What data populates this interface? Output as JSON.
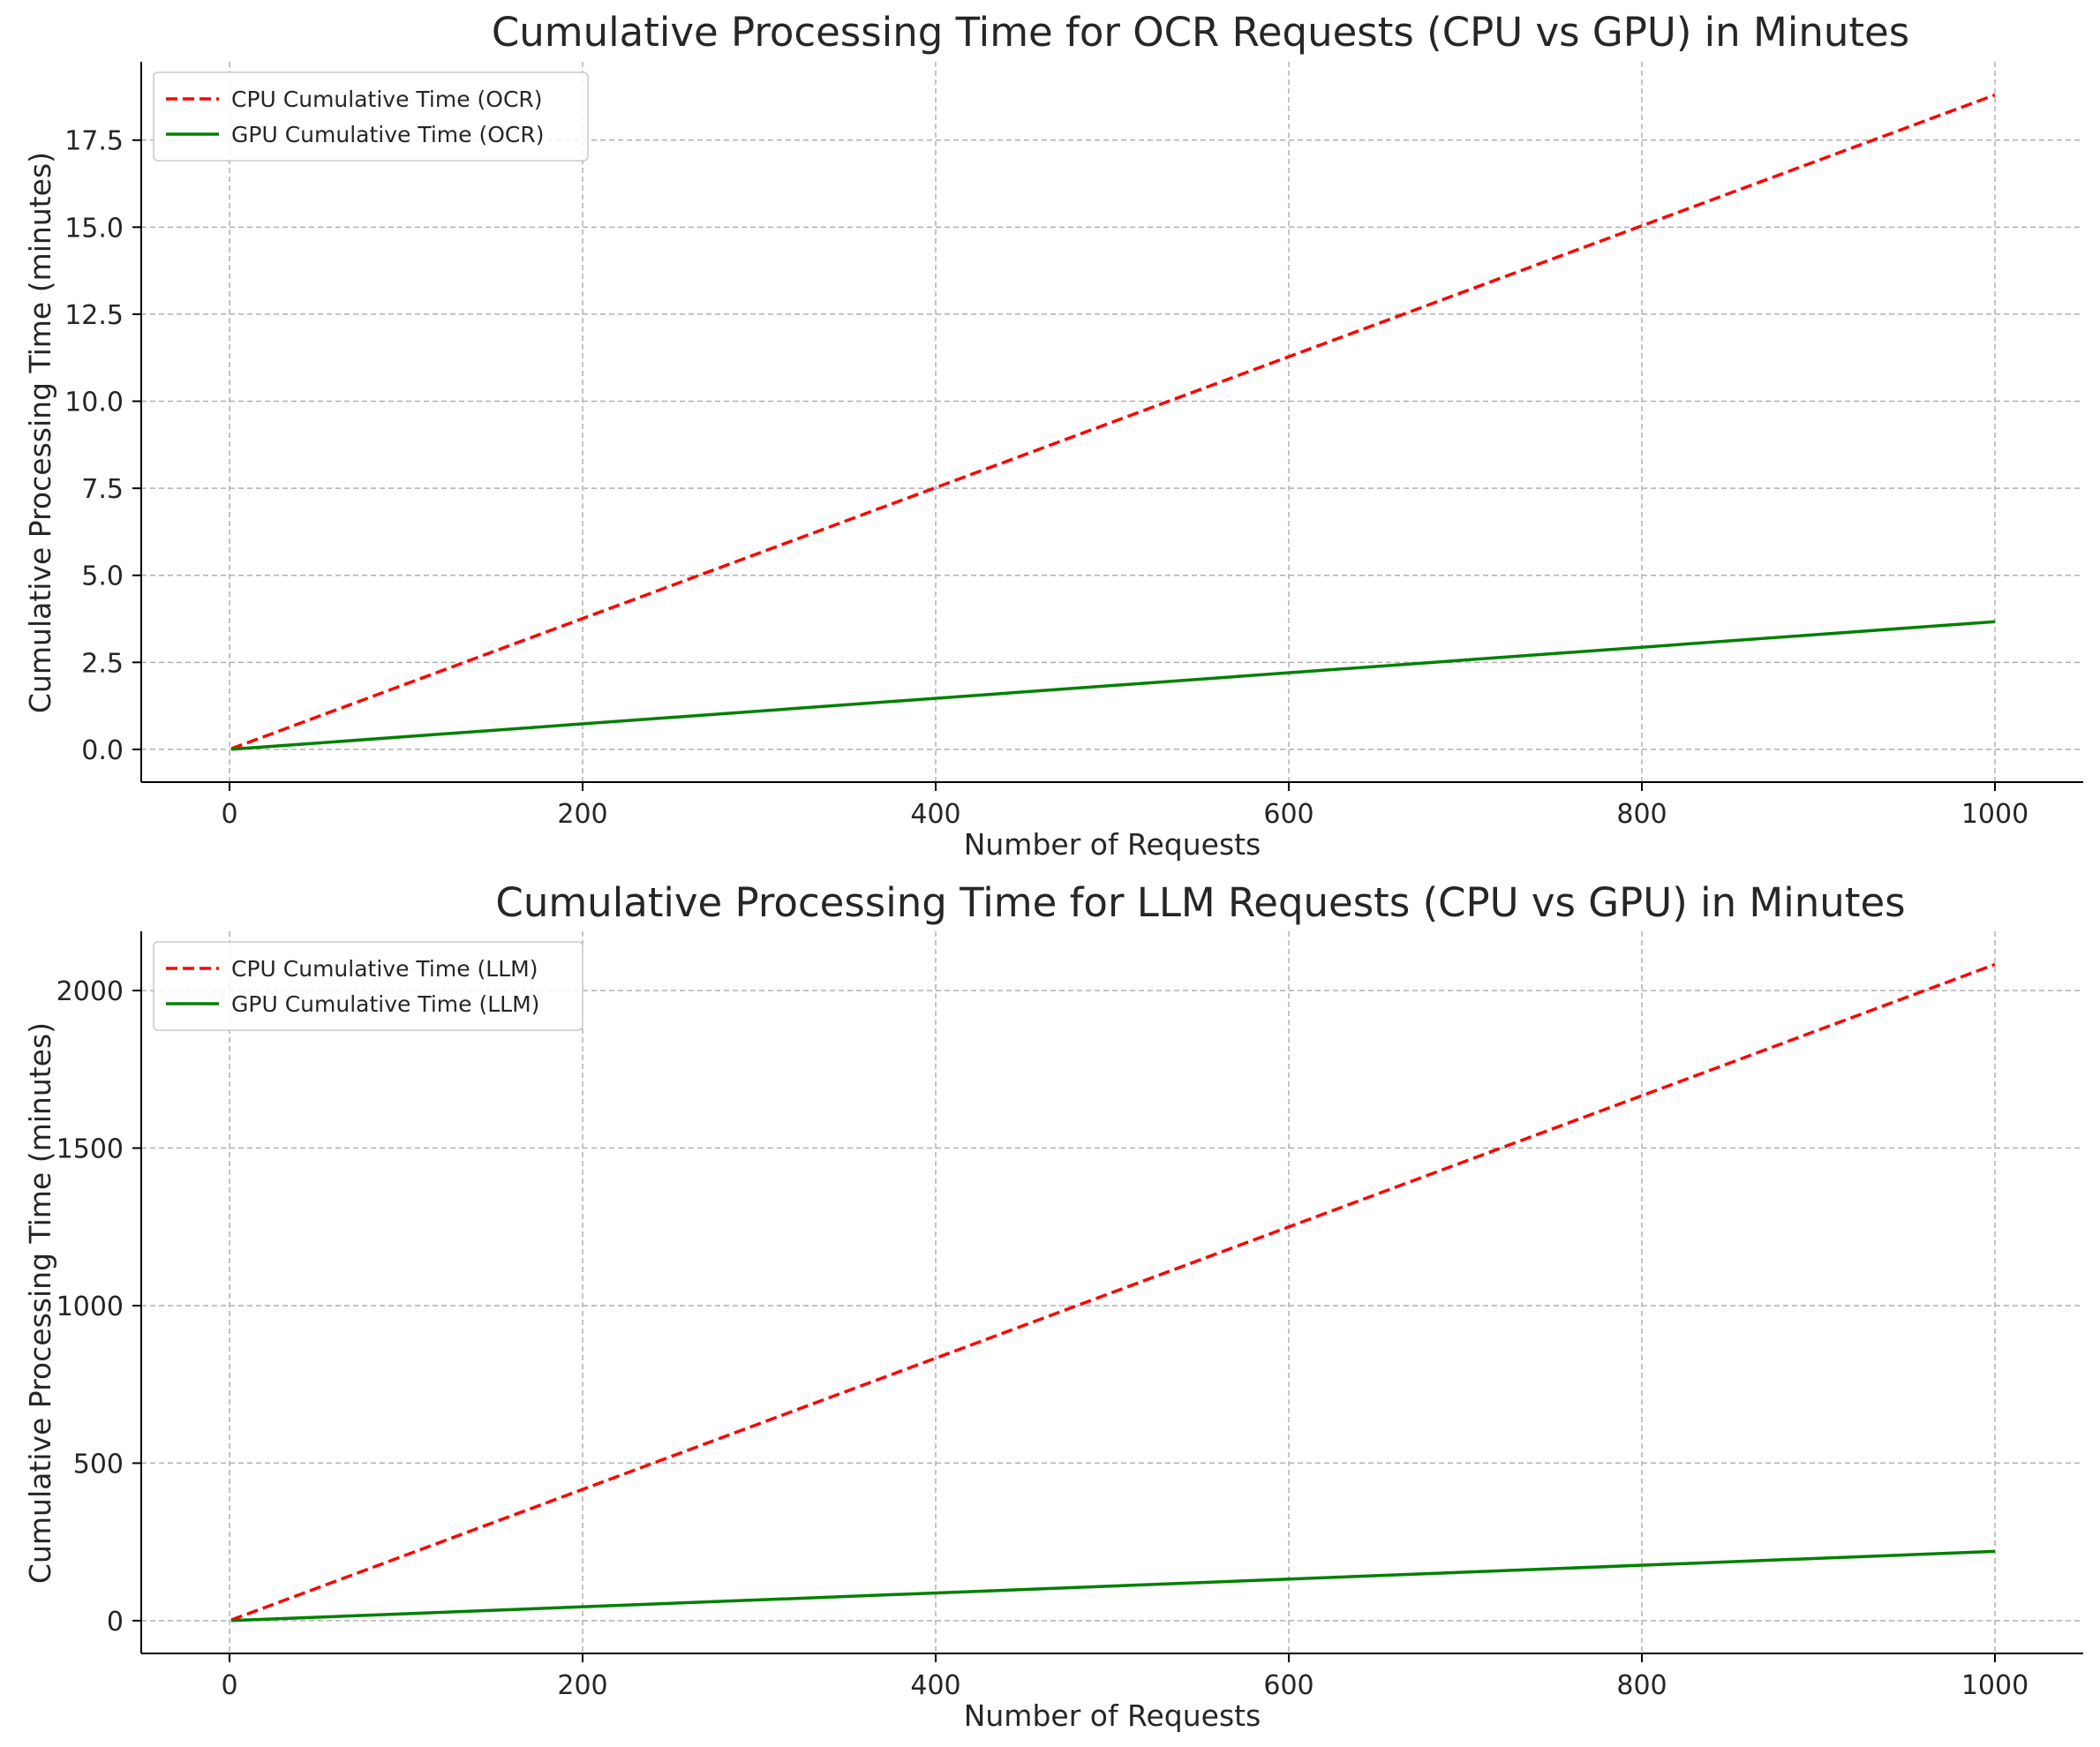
{
  "chart_data": [
    {
      "type": "line",
      "title": "Cumulative Processing Time for OCR Requests (CPU vs GPU) in Minutes",
      "xlabel": "Number of Requests",
      "ylabel": "Cumulative Processing Time (minutes)",
      "xlim": [
        -50,
        1050
      ],
      "ylim": [
        -0.94,
        19.75
      ],
      "xticks": [
        0,
        200,
        400,
        600,
        800,
        1000
      ],
      "xtick_labels": [
        "0",
        "200",
        "400",
        "600",
        "800",
        "1000"
      ],
      "yticks": [
        0,
        2.5,
        5,
        7.5,
        10,
        12.5,
        15,
        17.5
      ],
      "ytick_labels": [
        "0.0",
        "2.5",
        "5.0",
        "7.5",
        "10.0",
        "12.5",
        "15.0",
        "17.5"
      ],
      "grid": true,
      "legend_position": "top-left",
      "x": [
        1,
        1000
      ],
      "series": [
        {
          "name": "CPU Cumulative Time (OCR)",
          "values": [
            0.019,
            18.8
          ],
          "color": "#ff0000",
          "dash": true
        },
        {
          "name": "GPU Cumulative Time (OCR)",
          "values": [
            0.004,
            3.67
          ],
          "color": "#008000",
          "dash": false
        }
      ]
    },
    {
      "type": "line",
      "title": "Cumulative Processing Time for LLM Requests (CPU vs GPU) in Minutes",
      "xlabel": "Number of Requests",
      "ylabel": "Cumulative Processing Time (minutes)",
      "xlim": [
        -50,
        1050
      ],
      "ylim": [
        -104,
        2188
      ],
      "xticks": [
        0,
        200,
        400,
        600,
        800,
        1000
      ],
      "xtick_labels": [
        "0",
        "200",
        "400",
        "600",
        "800",
        "1000"
      ],
      "yticks": [
        0,
        500,
        1000,
        1500,
        2000
      ],
      "ytick_labels": [
        "0",
        "500",
        "1000",
        "1500",
        "2000"
      ],
      "grid": true,
      "legend_position": "top-left",
      "x": [
        1,
        1000
      ],
      "series": [
        {
          "name": "CPU Cumulative Time (LLM)",
          "values": [
            2.08,
            2083
          ],
          "color": "#ff0000",
          "dash": true
        },
        {
          "name": "GPU Cumulative Time (LLM)",
          "values": [
            0.22,
            220
          ],
          "color": "#008000",
          "dash": false
        }
      ]
    }
  ]
}
